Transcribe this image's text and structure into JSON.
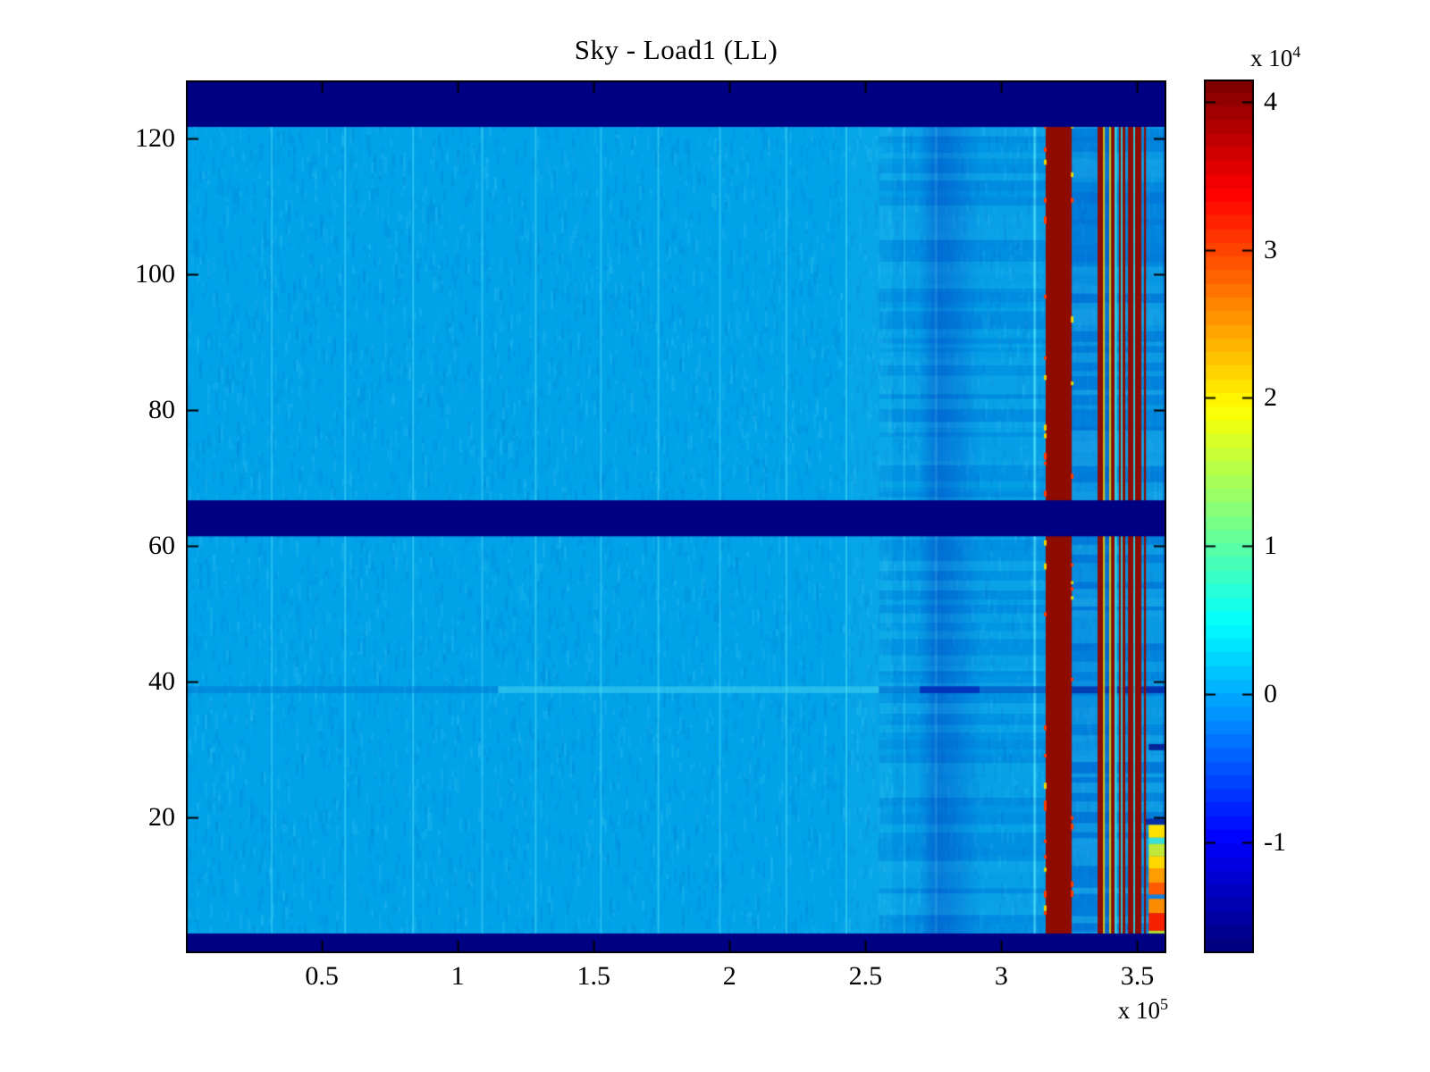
{
  "figure": {
    "background": "#FFFFFF"
  },
  "chart_data": {
    "type": "heatmap",
    "title": "Sky - Load1 (LL)",
    "xlim": [
      0,
      3.607
    ],
    "ylim": [
      0,
      128.55
    ],
    "x_offset": {
      "prefix": "x 10",
      "exp": "5"
    },
    "x_ticks": [
      {
        "v": 0.5,
        "label": "0.5"
      },
      {
        "v": 1.0,
        "label": "1"
      },
      {
        "v": 1.5,
        "label": "1.5"
      },
      {
        "v": 2.0,
        "label": "2"
      },
      {
        "v": 2.5,
        "label": "2.5"
      },
      {
        "v": 3.0,
        "label": "3"
      },
      {
        "v": 3.5,
        "label": "3.5"
      }
    ],
    "y_ticks": [
      {
        "v": 20,
        "label": "20"
      },
      {
        "v": 40,
        "label": "40"
      },
      {
        "v": 60,
        "label": "60"
      },
      {
        "v": 80,
        "label": "80"
      },
      {
        "v": 100,
        "label": "100"
      },
      {
        "v": 120,
        "label": "120"
      }
    ],
    "colorbar": {
      "colormap": "jet",
      "steps": 64,
      "cmin": -1.75,
      "cmax": 4.15,
      "offset": {
        "prefix": "x 10",
        "exp": "4"
      },
      "ticks": [
        {
          "v": 4,
          "label": "4"
        },
        {
          "v": 3,
          "label": "3"
        },
        {
          "v": 2,
          "label": "2"
        },
        {
          "v": 1,
          "label": "1"
        },
        {
          "v": 0,
          "label": "0"
        },
        {
          "v": -1,
          "label": "-1"
        }
      ]
    },
    "palette": {
      "base": "#00A2E8",
      "mottle_dark": "#0088D8",
      "mottle_light": "#28BCF0",
      "vline": "#50E0F8",
      "band_light": "#40C8F0",
      "band_dark": "#0048C8",
      "navy": "#000082",
      "dark_red": "#8E0B00",
      "notch_yellow": "#E8D800",
      "notch_red": "#FF3C00"
    },
    "features": {
      "soft_overlays": [
        {
          "x0": 2.44,
          "x1": 2.6,
          "color": "#40CCF0",
          "alpha": 0.1
        },
        {
          "x0": 2.6,
          "x1": 3.163,
          "color": "#0070D8",
          "alpha": 0.1
        },
        {
          "x0": 3.259,
          "x1": 3.354,
          "color": "#0058CC",
          "alpha": 0.32
        },
        {
          "x0": 3.381,
          "x1": 3.466,
          "color": "#0058CC",
          "alpha": 0.25
        },
        {
          "x0": 3.515,
          "x1": 3.607,
          "color": "#0058CC",
          "alpha": 0.22
        }
      ],
      "vlines": [
        {
          "x": 0.316,
          "a": 0.45
        },
        {
          "x": 0.586,
          "a": 0.5
        },
        {
          "x": 0.836,
          "a": 0.5
        },
        {
          "x": 1.09,
          "a": 0.45
        },
        {
          "x": 1.287,
          "a": 0.5
        },
        {
          "x": 1.527,
          "a": 0.45
        },
        {
          "x": 1.738,
          "a": 0.5
        },
        {
          "x": 1.965,
          "a": 0.45
        },
        {
          "x": 2.209,
          "a": 0.5
        },
        {
          "x": 2.43,
          "a": 0.55
        },
        {
          "x": 2.643,
          "a": 0.4
        },
        {
          "x": 2.758,
          "a": 0.7,
          "w": 3
        },
        {
          "x": 3.121,
          "a": 0.75,
          "w": 3
        }
      ],
      "dark_band": {
        "x0": 2.695,
        "x1": 2.925,
        "color": "0,80,200",
        "alpha": 0.55
      },
      "banding": [
        {
          "x0": 2.55,
          "x1": 3.163,
          "amin": 0.05,
          "amax": 0.18
        },
        {
          "x0": 3.259,
          "x1": 3.607,
          "amin": 0.1,
          "amax": 0.3
        }
      ],
      "hline_segments": [
        {
          "x0": 0.0,
          "x1": 1.15,
          "y0": 38.3,
          "y1": 39.3,
          "color": "#0072D0",
          "a": 0.45
        },
        {
          "x0": 1.15,
          "x1": 2.55,
          "y0": 38.3,
          "y1": 39.3,
          "color": "#48D8F0",
          "a": 0.5
        },
        {
          "x0": 2.55,
          "x1": 2.7,
          "y0": 38.3,
          "y1": 39.3,
          "color": "#0060C8",
          "a": 0.5
        },
        {
          "x0": 2.7,
          "x1": 2.92,
          "y0": 38.3,
          "y1": 39.3,
          "color": "#0030B8",
          "a": 0.95
        },
        {
          "x0": 2.92,
          "x1": 3.163,
          "y0": 38.3,
          "y1": 39.3,
          "color": "#0048C0",
          "a": 0.6
        },
        {
          "x0": 3.259,
          "x1": 3.532,
          "y0": 38.3,
          "y1": 39.3,
          "color": "#0028A8",
          "a": 0.8
        },
        {
          "x0": 3.532,
          "x1": 3.607,
          "y0": 38.3,
          "y1": 39.3,
          "color": "#0028A8",
          "a": 0.9
        }
      ],
      "vstripes": [
        {
          "x0": 3.163,
          "x1": 3.259,
          "color": "#8E0B00"
        },
        {
          "x0": 3.354,
          "x1": 3.374,
          "color": "#8E0B00"
        },
        {
          "x0": 3.374,
          "x1": 3.381,
          "color": "#E0CC00",
          "a": 0.9
        },
        {
          "x0": 3.381,
          "x1": 3.397,
          "color": "#0848C8",
          "a": 0.5
        },
        {
          "x0": 3.397,
          "x1": 3.404,
          "color": "#E0CC00",
          "a": 0.9
        },
        {
          "x0": 3.404,
          "x1": 3.417,
          "color": "#8E0B00"
        },
        {
          "x0": 3.417,
          "x1": 3.425,
          "color": "#38E0E0",
          "a": 0.9
        },
        {
          "x0": 3.433,
          "x1": 3.44,
          "color": "#8E0B00"
        },
        {
          "x0": 3.44,
          "x1": 3.446,
          "color": "#38E0E0",
          "a": 0.85
        },
        {
          "x0": 3.446,
          "x1": 3.456,
          "color": "#8E0B00"
        },
        {
          "x0": 3.466,
          "x1": 3.486,
          "color": "#8E0B00"
        },
        {
          "x0": 3.486,
          "x1": 3.492,
          "color": "#38E0E0",
          "a": 0.8
        },
        {
          "x0": 3.492,
          "x1": 3.515,
          "color": "#8E0B00"
        },
        {
          "x0": 3.525,
          "x1": 3.532,
          "color": "#8E0B00"
        },
        {
          "x0": 3.594,
          "x1": 3.607,
          "color": "#0040B0",
          "a": 0.3
        }
      ],
      "notch_band": {
        "x0": 3.163,
        "x1": 3.259
      },
      "rows": [
        {
          "x0": 3.532,
          "x1": 3.607,
          "y0": 18.9,
          "y1": 19.8,
          "color": "#0020A0",
          "a": 0.85
        },
        {
          "x0": 3.542,
          "x1": 3.607,
          "y0": 17.0,
          "y1": 18.9,
          "color": "#FFE000"
        },
        {
          "x0": 3.542,
          "x1": 3.607,
          "y0": 16.1,
          "y1": 17.0,
          "color": "#38E0D8"
        },
        {
          "x0": 3.542,
          "x1": 3.607,
          "y0": 14.3,
          "y1": 16.1,
          "color": "#C0E838"
        },
        {
          "x0": 3.542,
          "x1": 3.607,
          "y0": 12.5,
          "y1": 14.3,
          "color": "#FFD800"
        },
        {
          "x0": 3.542,
          "x1": 3.607,
          "y0": 10.4,
          "y1": 12.5,
          "color": "#FF9C00"
        },
        {
          "x0": 3.542,
          "x1": 3.607,
          "y0": 8.6,
          "y1": 10.4,
          "color": "#FF5A00"
        },
        {
          "x0": 3.542,
          "x1": 3.607,
          "y0": 8.0,
          "y1": 8.6,
          "color": "#1080E0"
        },
        {
          "x0": 3.542,
          "x1": 3.607,
          "y0": 5.9,
          "y1": 8.0,
          "color": "#FF8C00"
        },
        {
          "x0": 3.542,
          "x1": 3.607,
          "y0": 3.3,
          "y1": 5.9,
          "color": "#F52000"
        },
        {
          "x0": 3.542,
          "x1": 3.607,
          "y0": 2.5,
          "y1": 3.3,
          "color": "#B0E030"
        },
        {
          "x0": 3.542,
          "x1": 3.6,
          "y0": 29.9,
          "y1": 30.8,
          "color": "#001890",
          "a": 0.9
        }
      ],
      "hbands": [
        {
          "y0": 121.7,
          "y1": 128.55
        },
        {
          "y0": 61.4,
          "y1": 66.7
        },
        {
          "y0": 0.0,
          "y1": 2.9
        }
      ]
    }
  }
}
